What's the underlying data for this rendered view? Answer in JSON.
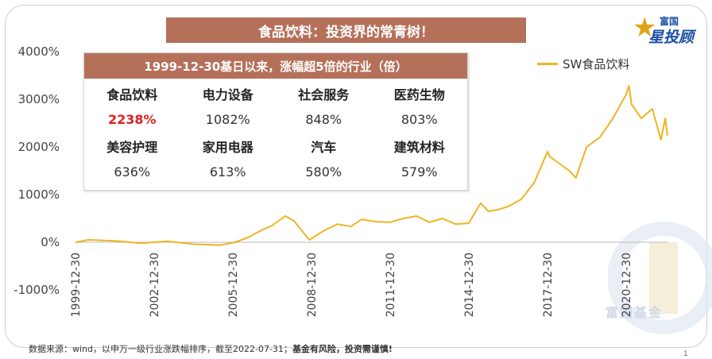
{
  "title": "食品饮料：投资界的常青树！",
  "logo": {
    "line1": "富国",
    "line2": "星投顾"
  },
  "watermark": "富国基金",
  "legend": {
    "label": "SW食品饮料",
    "color": "#f0b323"
  },
  "table": {
    "header": "1999-12-30基日以来，涨幅超5倍的行业（倍）",
    "rows": [
      {
        "names": [
          "食品饮料",
          "电力设备",
          "社会服务",
          "医药生物"
        ],
        "values": [
          "2238%",
          "1082%",
          "848%",
          "803%"
        ]
      },
      {
        "names": [
          "美容护理",
          "家用电器",
          "汽车",
          "建筑材料"
        ],
        "values": [
          "636%",
          "613%",
          "580%",
          "579%"
        ]
      }
    ],
    "highlight_color": "#e02020"
  },
  "footer": {
    "source": "数据来源：wind，以申万一级行业涨跌幅排序，截至2022-07-31；",
    "risk": "基金有风险，投资需谨慎!"
  },
  "page_number": "1",
  "chart_data": {
    "type": "line",
    "title": "",
    "xlabel": "",
    "ylabel": "",
    "ylim": [
      -1000,
      4000
    ],
    "xlim": [
      "1999-12-30",
      "2022-07-31"
    ],
    "y_ticks": [
      "4000%",
      "3000%",
      "2000%",
      "1000%",
      "0%",
      "-1000%"
    ],
    "y_tick_values": [
      4000,
      3000,
      2000,
      1000,
      0,
      -1000
    ],
    "x_ticks": [
      "1999-12-30",
      "2002-12-30",
      "2005-12-30",
      "2008-12-30",
      "2011-12-30",
      "2014-12-30",
      "2017-12-30",
      "2020-12-30"
    ],
    "grid": false,
    "series": [
      {
        "name": "SW食品饮料",
        "color": "#f0b323",
        "x": [
          "1999-12-30",
          "2000-06-30",
          "2001-06-30",
          "2002-06-30",
          "2003-06-30",
          "2004-06-30",
          "2005-06-30",
          "2006-01-31",
          "2006-07-31",
          "2007-01-31",
          "2007-06-30",
          "2007-12-31",
          "2008-04-30",
          "2008-11-30",
          "2009-06-30",
          "2009-12-31",
          "2010-06-30",
          "2010-11-30",
          "2011-06-30",
          "2011-12-31",
          "2012-06-30",
          "2012-12-31",
          "2013-06-30",
          "2013-12-31",
          "2014-06-30",
          "2014-12-31",
          "2015-06-15",
          "2015-09-30",
          "2016-01-31",
          "2016-06-30",
          "2016-12-31",
          "2017-06-30",
          "2017-12-31",
          "2018-01-31",
          "2018-10-31",
          "2019-01-31",
          "2019-06-30",
          "2019-12-31",
          "2020-06-30",
          "2020-12-31",
          "2021-02-10",
          "2021-03-15",
          "2021-07-31",
          "2021-12-31",
          "2022-04-30",
          "2022-06-30",
          "2022-07-31"
        ],
        "y": [
          0,
          50,
          30,
          -20,
          20,
          -40,
          -60,
          0,
          100,
          250,
          350,
          550,
          450,
          50,
          250,
          380,
          330,
          480,
          430,
          420,
          500,
          550,
          420,
          500,
          380,
          400,
          820,
          650,
          680,
          750,
          900,
          1250,
          1900,
          1800,
          1500,
          1350,
          2000,
          2200,
          2600,
          3100,
          3280,
          2900,
          2600,
          2800,
          2150,
          2600,
          2238
        ]
      }
    ]
  }
}
